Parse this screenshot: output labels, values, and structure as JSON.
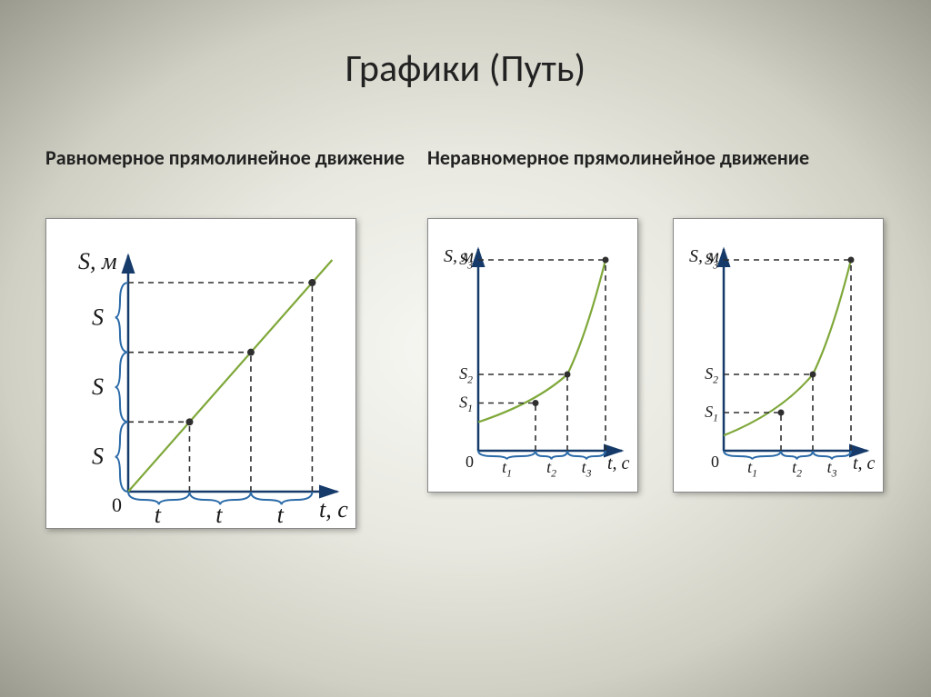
{
  "title": "Графики (Путь)",
  "subtitle_left": "Равномерное прямолинейное движение",
  "subtitle_right": "Неравномерное прямолинейное движение",
  "colors": {
    "axis": "#163b6a",
    "line_graph": "#7fa83a",
    "brace": "#2a6aa8",
    "dashed": "#2f2f2f",
    "text": "#1a1a1a",
    "box_bg": "#ffffff",
    "box_border": "#888888"
  },
  "chart_a": {
    "y_label": "S, м",
    "x_label": "t, c",
    "origin_label": "0",
    "y_ticks": [
      "S",
      "S",
      "S"
    ],
    "x_ticks": [
      "t",
      "t",
      "t"
    ],
    "type": "linear-path",
    "points": [
      [
        0,
        0
      ],
      [
        1,
        1
      ],
      [
        2,
        2
      ],
      [
        3,
        3
      ]
    ],
    "axis_font": 26,
    "tick_font": 26
  },
  "chart_b": {
    "y_label": "S, м",
    "x_label": "t, c",
    "origin_label": "0",
    "y_tick_prefix": "S",
    "y_tick_sub": [
      "1",
      "2",
      "3"
    ],
    "x_tick_prefix": "t",
    "x_tick_sub": [
      "1",
      "2",
      "3"
    ],
    "type": "accelerating-path",
    "points": [
      [
        0,
        0.15
      ],
      [
        0.45,
        0.25
      ],
      [
        0.7,
        0.4
      ],
      [
        1,
        1
      ]
    ],
    "axis_font": 20,
    "tick_font": 18
  },
  "chart_c": {
    "y_label": "S, м",
    "x_label": "t, c",
    "origin_label": "0",
    "y_tick_prefix": "S",
    "y_tick_sub": [
      "1",
      "2",
      "3"
    ],
    "x_tick_prefix": "t",
    "x_tick_sub": [
      "1",
      "2",
      "3"
    ],
    "type": "accelerating-path",
    "points": [
      [
        0,
        0.08
      ],
      [
        0.45,
        0.2
      ],
      [
        0.7,
        0.4
      ],
      [
        1,
        1
      ]
    ],
    "axis_font": 20,
    "tick_font": 18
  },
  "stroke_widths": {
    "axis": 2.5,
    "line": 2.2,
    "dashed": 1.6,
    "brace": 2
  },
  "dash_pattern": "6,5"
}
